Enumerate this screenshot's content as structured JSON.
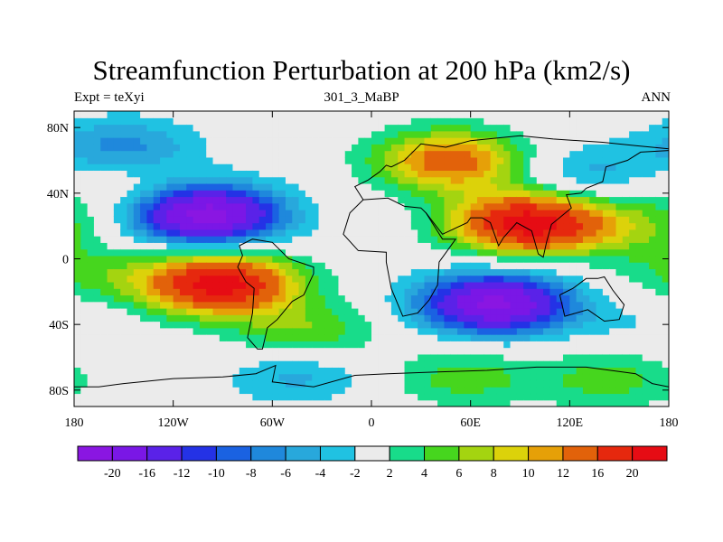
{
  "figure": {
    "title": "Streamfunction Perturbation at 200 hPa (km2/s)",
    "left_label": "Expt = teXyi",
    "center_label": "301_3_MaBP",
    "right_label": "ANN"
  },
  "chart_data": {
    "type": "heatmap",
    "title": "Streamfunction Perturbation at 200 hPa (km2/s)",
    "subtitle_left": "Expt = teXyi",
    "subtitle_center": "301_3_MaBP",
    "subtitle_right": "ANN",
    "xlabel": "",
    "ylabel": "",
    "x_ticks": [
      "180",
      "120W",
      "60W",
      "0",
      "60E",
      "120E",
      "180"
    ],
    "x_tick_values": [
      -180,
      -120,
      -60,
      0,
      60,
      120,
      180
    ],
    "y_ticks": [
      "80N",
      "40N",
      "0",
      "40S",
      "80S"
    ],
    "y_tick_values": [
      80,
      40,
      0,
      -40,
      -80
    ],
    "xlim": [
      -180,
      180
    ],
    "ylim": [
      -90,
      90
    ],
    "colorbar": {
      "labels": [
        "-20",
        "-16",
        "-12",
        "-10",
        "-8",
        "-6",
        "-4",
        "-2",
        "2",
        "4",
        "6",
        "8",
        "10",
        "12",
        "16",
        "20"
      ],
      "levels": [
        -20,
        -16,
        -12,
        -10,
        -8,
        -6,
        -4,
        -2,
        2,
        4,
        6,
        8,
        10,
        12,
        16,
        20
      ],
      "colors": [
        "#8a16e2",
        "#7a17e6",
        "#5a22e8",
        "#2432e6",
        "#1a62e2",
        "#1f88dc",
        "#28a8dc",
        "#20c2e2",
        "#ebebeb",
        "#18dc8a",
        "#46d61e",
        "#a4d410",
        "#dcd20a",
        "#e6a008",
        "#e2620a",
        "#e6280e",
        "#e60c14"
      ]
    },
    "centers": [
      {
        "lon": -100,
        "lat": 27,
        "value": -22
      },
      {
        "lon": -92,
        "lat": -15,
        "value": 22
      },
      {
        "lon": 75,
        "lat": -27,
        "value": -21
      },
      {
        "lon": 95,
        "lat": 22,
        "value": 22
      },
      {
        "lon": 48,
        "lat": 60,
        "value": 14
      },
      {
        "lon": -150,
        "lat": 68,
        "value": -7
      },
      {
        "lon": 130,
        "lat": 52,
        "value": -5
      },
      {
        "lon": -45,
        "lat": -70,
        "value": -5
      },
      {
        "lon": 55,
        "lat": -72,
        "value": 5
      },
      {
        "lon": 145,
        "lat": -73,
        "value": 5
      },
      {
        "lon": 160,
        "lat": 20,
        "value": 5
      },
      {
        "lon": -170,
        "lat": -10,
        "value": 4
      },
      {
        "lon": 165,
        "lat": -40,
        "value": -2
      },
      {
        "lon": -40,
        "lat": -45,
        "value": 6
      },
      {
        "lon": -155,
        "lat": 45,
        "value": 3
      }
    ]
  }
}
